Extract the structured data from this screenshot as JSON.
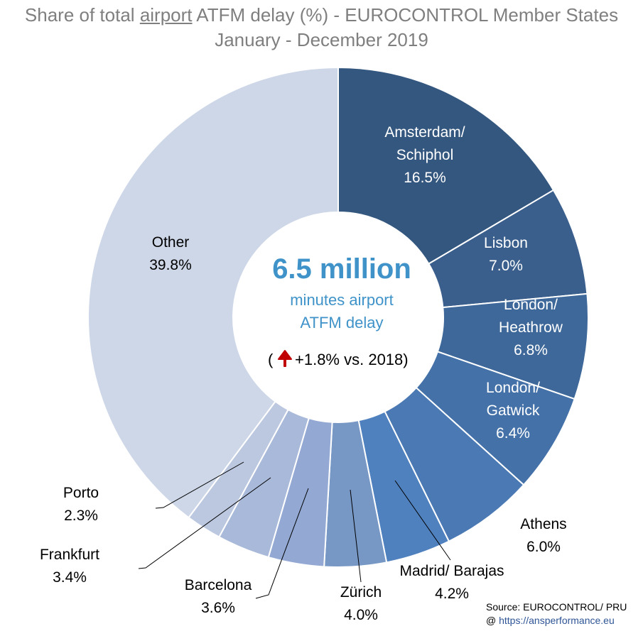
{
  "title": {
    "prefix": "Share of total ",
    "underlined": "airport",
    "suffix": " ATFM delay (%) - EUROCONTROL Member States",
    "subtitle": "January - December 2019"
  },
  "center": {
    "headline": "6.5 million",
    "line1": "minutes airport",
    "line2": "ATFM delay",
    "change_open": "(",
    "change_text": "+1.8% vs. 2018)",
    "arrow_icon": "up-arrow-icon",
    "arrow_color": "#c00000"
  },
  "source": {
    "line1": "Source: EUROCONTROL/ PRU",
    "at": "@ ",
    "link": "https://ansperformance.eu"
  },
  "chart_data": {
    "type": "donut",
    "unit": "%",
    "slices": [
      {
        "name": "Amsterdam/ Schiphol",
        "value": 16.5,
        "label": "16.5%",
        "color": "#34577f"
      },
      {
        "name": "Lisbon",
        "value": 7.0,
        "label": "7.0%",
        "color": "#3a5f8c"
      },
      {
        "name": "London/ Heathrow",
        "value": 6.8,
        "label": "6.8%",
        "color": "#3e689a"
      },
      {
        "name": "London/ Gatwick",
        "value": 6.4,
        "label": "6.4%",
        "color": "#4471a8"
      },
      {
        "name": "Athens",
        "value": 6.0,
        "label": "6.0%",
        "color": "#4a79b4"
      },
      {
        "name": "Madrid/ Barajas",
        "value": 4.2,
        "label": "4.2%",
        "color": "#5081bf"
      },
      {
        "name": "Zürich",
        "value": 4.0,
        "label": "4.0%",
        "color": "#7797c5"
      },
      {
        "name": "Barcelona",
        "value": 3.6,
        "label": "3.6%",
        "color": "#93a9d3"
      },
      {
        "name": "Frankfurt",
        "value": 3.4,
        "label": "3.4%",
        "color": "#a9b9d9"
      },
      {
        "name": "Porto",
        "value": 2.3,
        "label": "2.3%",
        "color": "#bcc8e0"
      },
      {
        "name": "Other",
        "value": 39.8,
        "label": "39.8%",
        "color": "#cdd7e8"
      }
    ]
  }
}
